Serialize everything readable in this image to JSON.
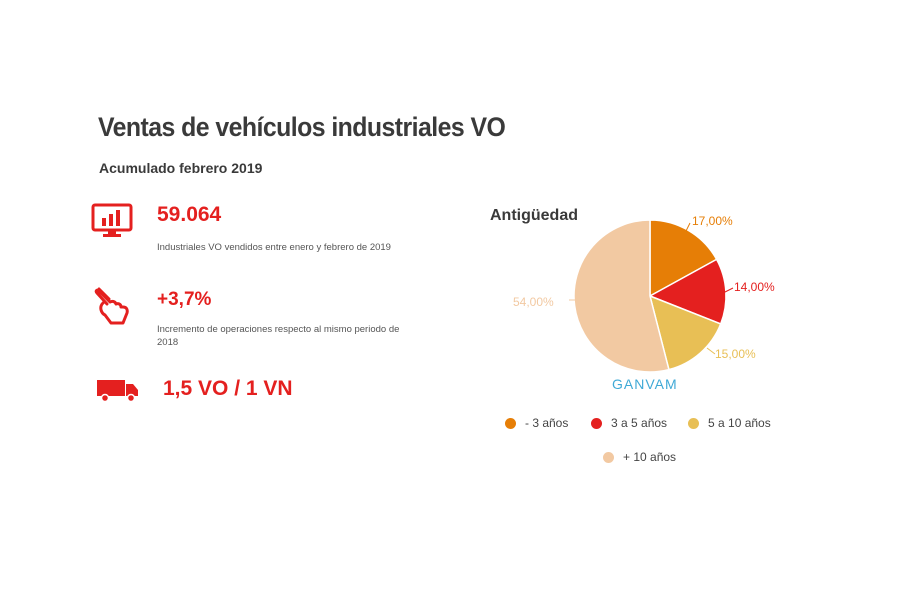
{
  "header": {
    "title": "Ventas de vehículos industriales VO",
    "subtitle": "Acumulado febrero 2019"
  },
  "stats": [
    {
      "icon": "monitor-chart-icon",
      "value": "59.064",
      "description": "Industriales VO vendidos entre enero y febrero de 2019"
    },
    {
      "icon": "hand-pointer-icon",
      "value": "+3,7%",
      "description": "Incremento de operaciones respecto al mismo periodo de 2018"
    },
    {
      "icon": "truck-icon",
      "value": "1,5 VO / 1 VN",
      "description": ""
    }
  ],
  "brand": "GANVAM",
  "colors": {
    "accent": "#e4201f"
  },
  "chart_data": {
    "type": "pie",
    "title": "Antigüedad",
    "slices": [
      {
        "label": "- 3 años",
        "value": 17.0,
        "display": "17,00%",
        "color": "#e67e06"
      },
      {
        "label": "3 a 5 años",
        "value": 14.0,
        "display": "14,00%",
        "color": "#e4201f"
      },
      {
        "label": "5 a 10 años",
        "value": 15.0,
        "display": "15,00%",
        "color": "#e8bf55"
      },
      {
        "label": "+ 10 años",
        "value": 54.0,
        "display": "54,00%",
        "color": "#f2c9a2"
      }
    ],
    "legend": {
      "position": "bottom"
    }
  }
}
